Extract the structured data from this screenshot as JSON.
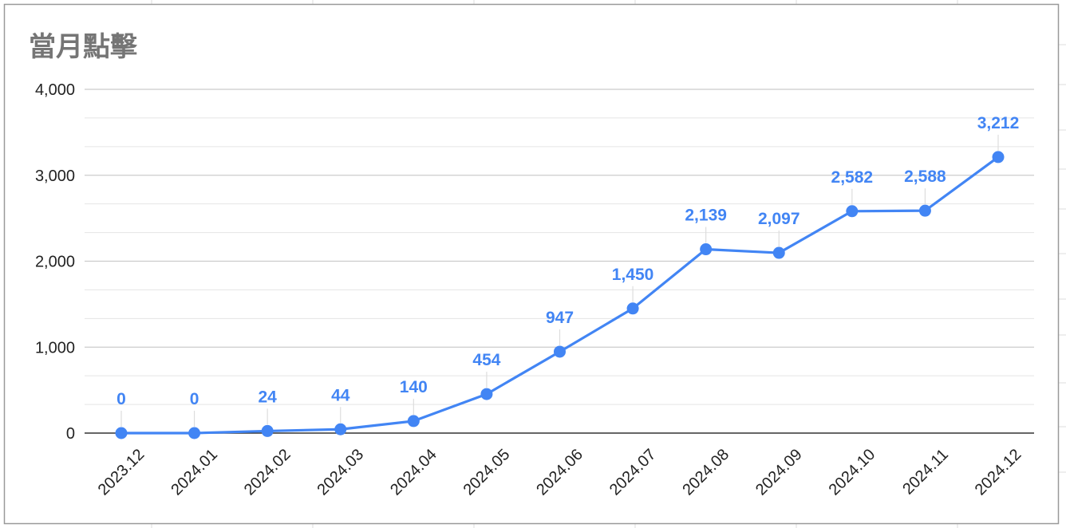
{
  "chart_data": {
    "type": "line",
    "title": "當月點擊",
    "xlabel": "",
    "ylabel": "",
    "categories": [
      "2023.12",
      "2024.01",
      "2024.02",
      "2024.03",
      "2024.04",
      "2024.05",
      "2024.06",
      "2024.07",
      "2024.08",
      "2024.09",
      "2024.10",
      "2024.11",
      "2024.12"
    ],
    "series": [
      {
        "values": [
          0,
          0,
          24,
          44,
          140,
          454,
          947,
          1450,
          2139,
          2097,
          2582,
          2588,
          3212
        ]
      }
    ],
    "data_labels": [
      "0",
      "0",
      "24",
      "44",
      "140",
      "454",
      "947",
      "1,450",
      "2,139",
      "2,097",
      "2,582",
      "2,588",
      "3,212"
    ],
    "ylim": [
      0,
      4000
    ],
    "yticks": [
      0,
      1000,
      2000,
      3000,
      4000
    ],
    "ytick_labels": [
      "0",
      "1,000",
      "2,000",
      "3,000",
      "4,000"
    ],
    "grid": true,
    "legend": "none",
    "colors": {
      "line": "#4285f4",
      "title": "#757575",
      "grid": "#cccccc",
      "minor_grid": "#e5e5e5",
      "axis": "#333333",
      "frame": "#999999"
    }
  }
}
